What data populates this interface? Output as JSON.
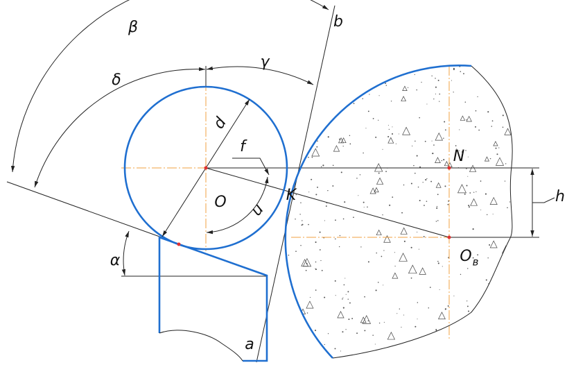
{
  "labels": {
    "beta": "β",
    "delta": "δ",
    "gamma": "γ",
    "b": "b",
    "d": "d",
    "f": "f",
    "N": "N",
    "O": "O",
    "K": "K",
    "u": "u",
    "h": "h",
    "alpha": "α",
    "O_main": "O",
    "O_sub": "в",
    "a": "a"
  }
}
